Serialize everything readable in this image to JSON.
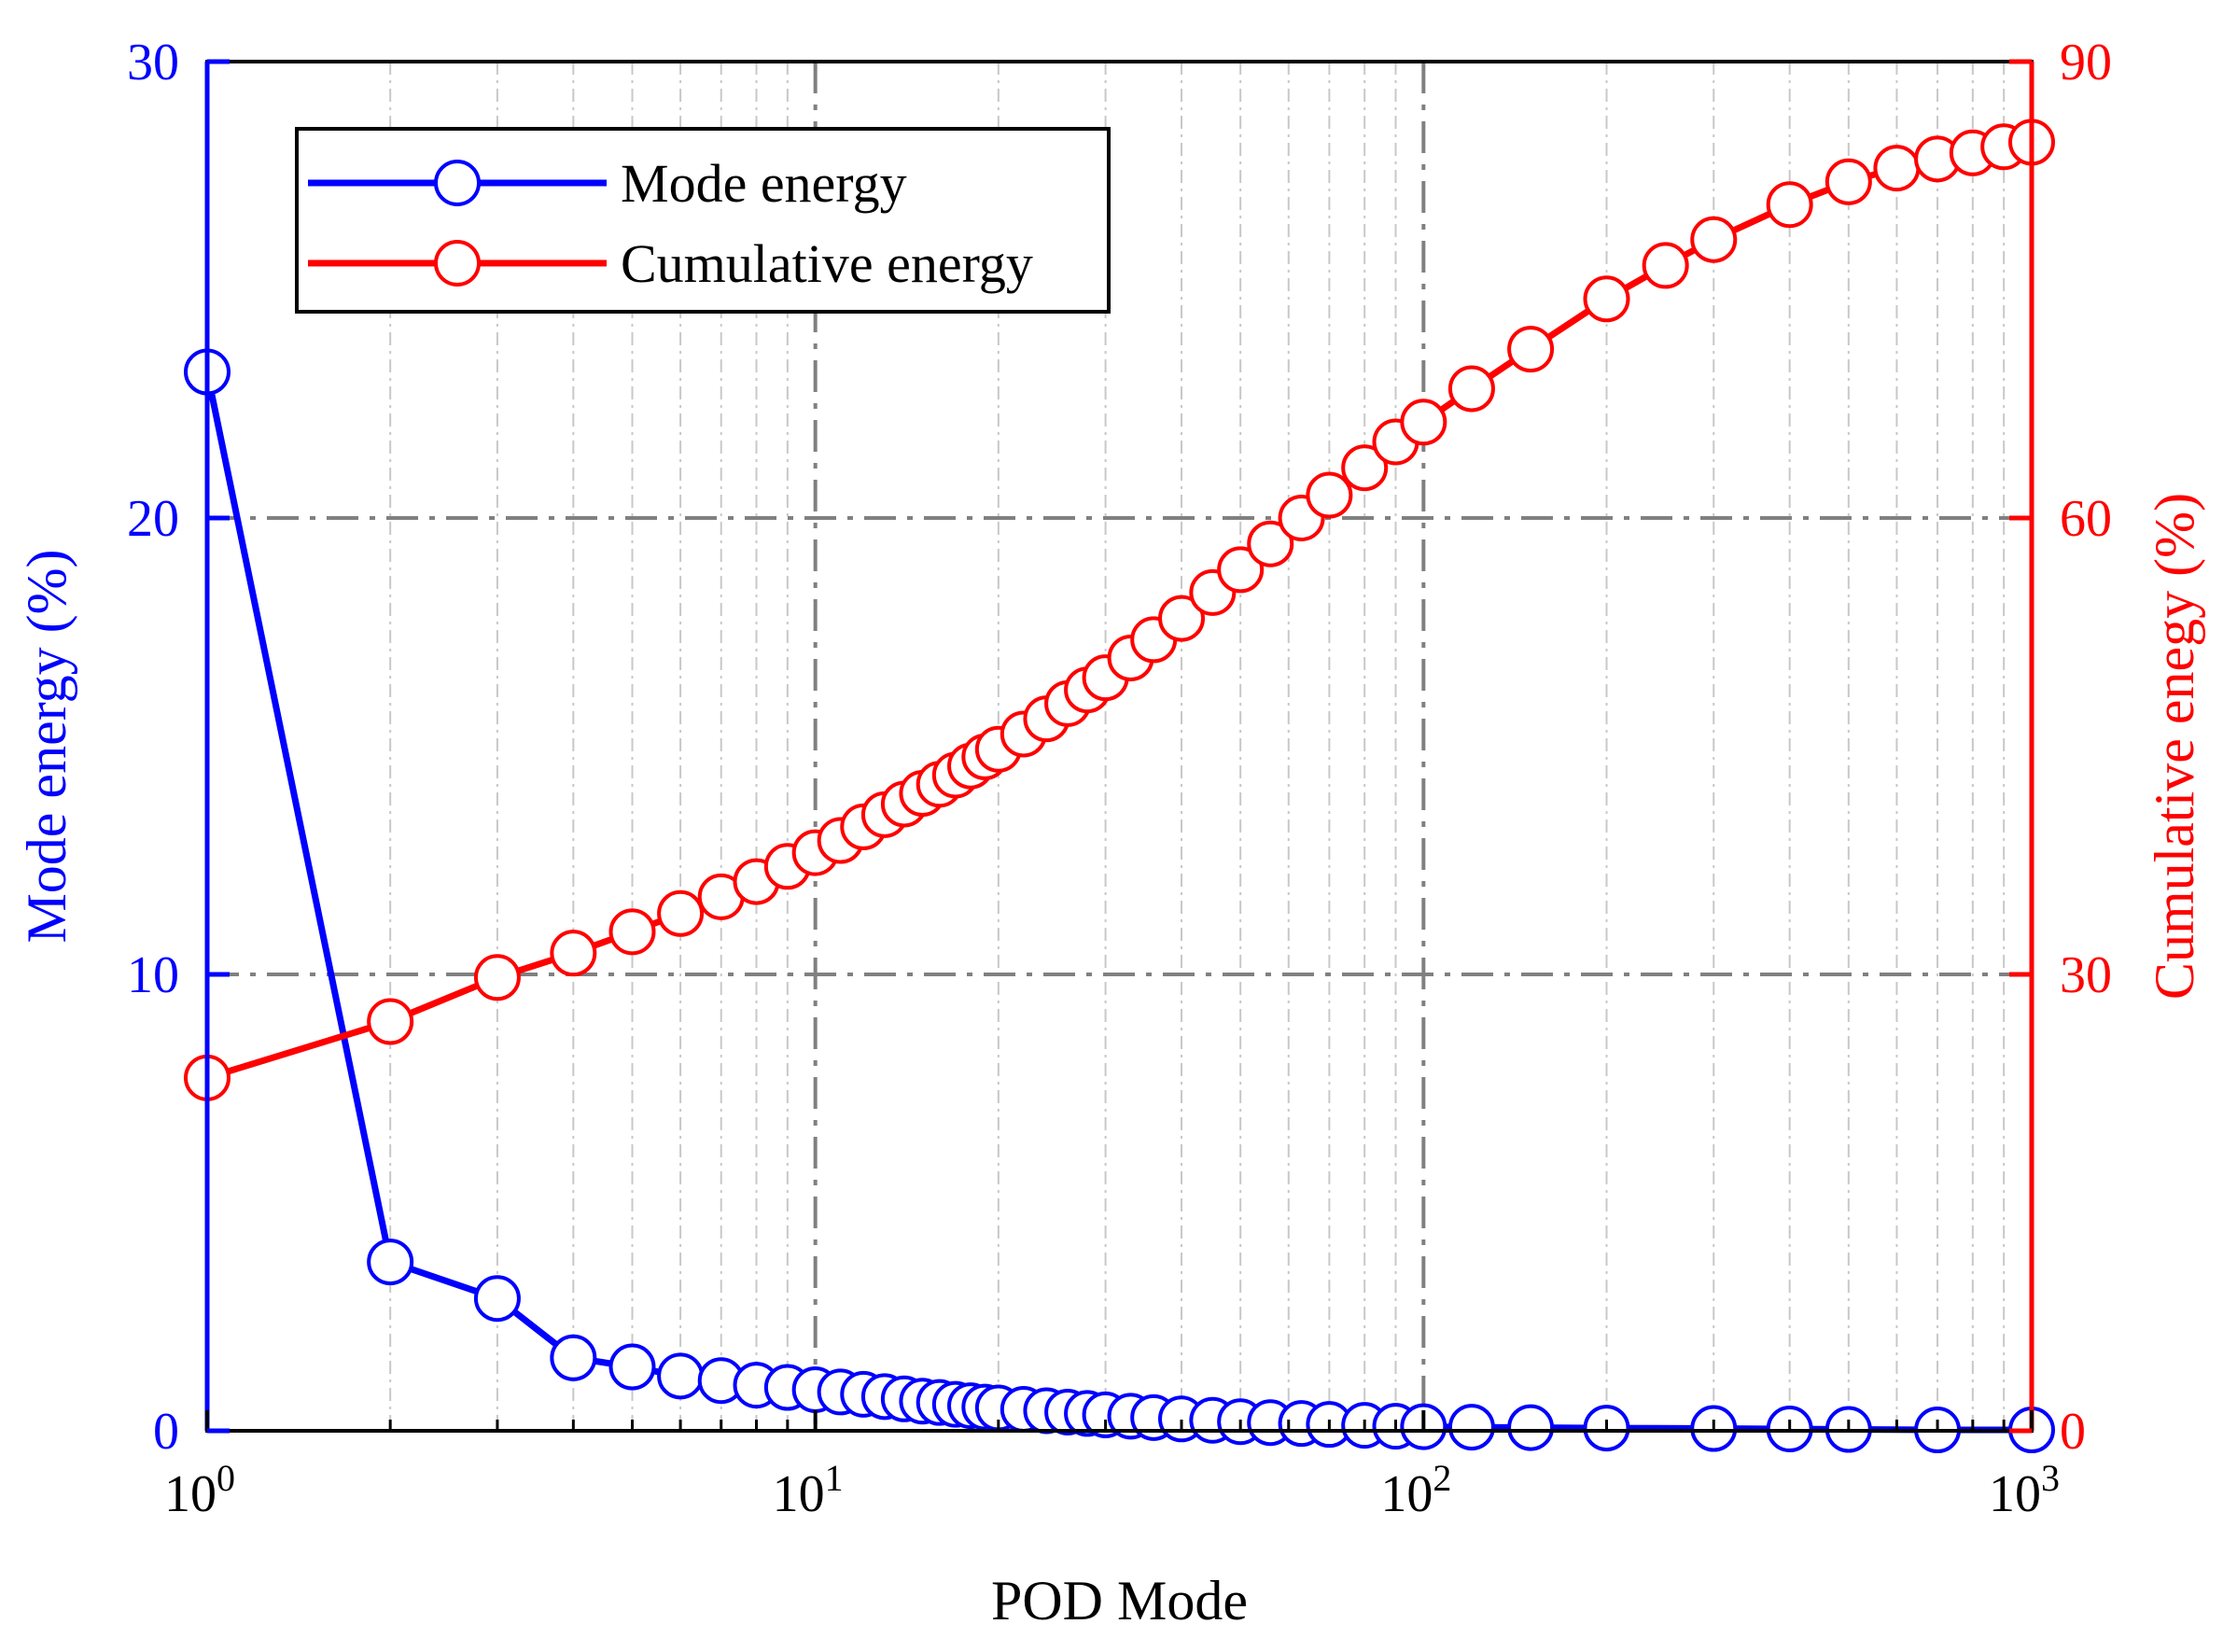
{
  "colors": {
    "left_axis": "#0000ff",
    "right_axis": "#ff0000",
    "frame": "#000000",
    "grid": "#808080"
  },
  "chart_data": {
    "type": "line",
    "xlabel": "POD Mode",
    "x_scale": "log",
    "xlim": [
      1,
      1000
    ],
    "x_ticks": [
      {
        "value": 1,
        "base": "10",
        "exp": "0"
      },
      {
        "value": 10,
        "base": "10",
        "exp": "1"
      },
      {
        "value": 100,
        "base": "10",
        "exp": "2"
      },
      {
        "value": 1000,
        "base": "10",
        "exp": "3"
      }
    ],
    "ylabel_left": "Mode energy (%)",
    "ylim_left": [
      0,
      30
    ],
    "yticks_left": [
      "0",
      "10",
      "20",
      "30"
    ],
    "ylabel_right": "Cumulative enegy (%)",
    "ylim_right": [
      0,
      90
    ],
    "yticks_right": [
      "0",
      "30",
      "60",
      "90"
    ],
    "grid": true,
    "legend_position": "top-left",
    "series": [
      {
        "name": "Mode energy",
        "axis": "left",
        "color": "#0000ff",
        "marker": "open-circle",
        "x": [
          1,
          2,
          3,
          4,
          5,
          6,
          7,
          8,
          9,
          10,
          11,
          12,
          13,
          14,
          15,
          16,
          17,
          18,
          19,
          20,
          22,
          24,
          26,
          28,
          30,
          33,
          36,
          40,
          45,
          50,
          56,
          63,
          70,
          80,
          90,
          100,
          120,
          150,
          200,
          300,
          400,
          500,
          700,
          1000
        ],
        "y": [
          23.2,
          3.7,
          2.9,
          1.6,
          1.4,
          1.2,
          1.1,
          1.0,
          0.95,
          0.9,
          0.85,
          0.8,
          0.75,
          0.7,
          0.65,
          0.62,
          0.58,
          0.55,
          0.52,
          0.5,
          0.47,
          0.44,
          0.41,
          0.38,
          0.35,
          0.32,
          0.29,
          0.26,
          0.23,
          0.2,
          0.18,
          0.16,
          0.14,
          0.12,
          0.1,
          0.09,
          0.08,
          0.07,
          0.06,
          0.05,
          0.04,
          0.03,
          0.02,
          0.02
        ]
      },
      {
        "name": "Cumulative energy",
        "axis": "right",
        "color": "#ff0000",
        "marker": "open-circle",
        "x": [
          1,
          2,
          3,
          4,
          5,
          6,
          7,
          8,
          9,
          10,
          11,
          12,
          13,
          14,
          15,
          16,
          17,
          18,
          19,
          20,
          22,
          24,
          26,
          28,
          30,
          33,
          36,
          40,
          45,
          50,
          56,
          63,
          70,
          80,
          90,
          100,
          120,
          150,
          200,
          250,
          300,
          400,
          500,
          600,
          700,
          800,
          900,
          1000
        ],
        "y": [
          23.2,
          26.9,
          29.8,
          31.4,
          32.8,
          34.0,
          35.1,
          36.1,
          37.1,
          38.0,
          38.8,
          39.7,
          40.5,
          41.2,
          41.9,
          42.5,
          43.1,
          43.7,
          44.3,
          44.8,
          45.8,
          46.8,
          47.8,
          48.7,
          49.5,
          50.8,
          52.0,
          53.4,
          55.1,
          56.6,
          58.3,
          60.0,
          61.5,
          63.3,
          65.0,
          66.3,
          68.5,
          71.1,
          74.4,
          76.6,
          78.3,
          80.6,
          82.1,
          83.0,
          83.6,
          84.0,
          84.4,
          84.7
        ]
      }
    ]
  }
}
